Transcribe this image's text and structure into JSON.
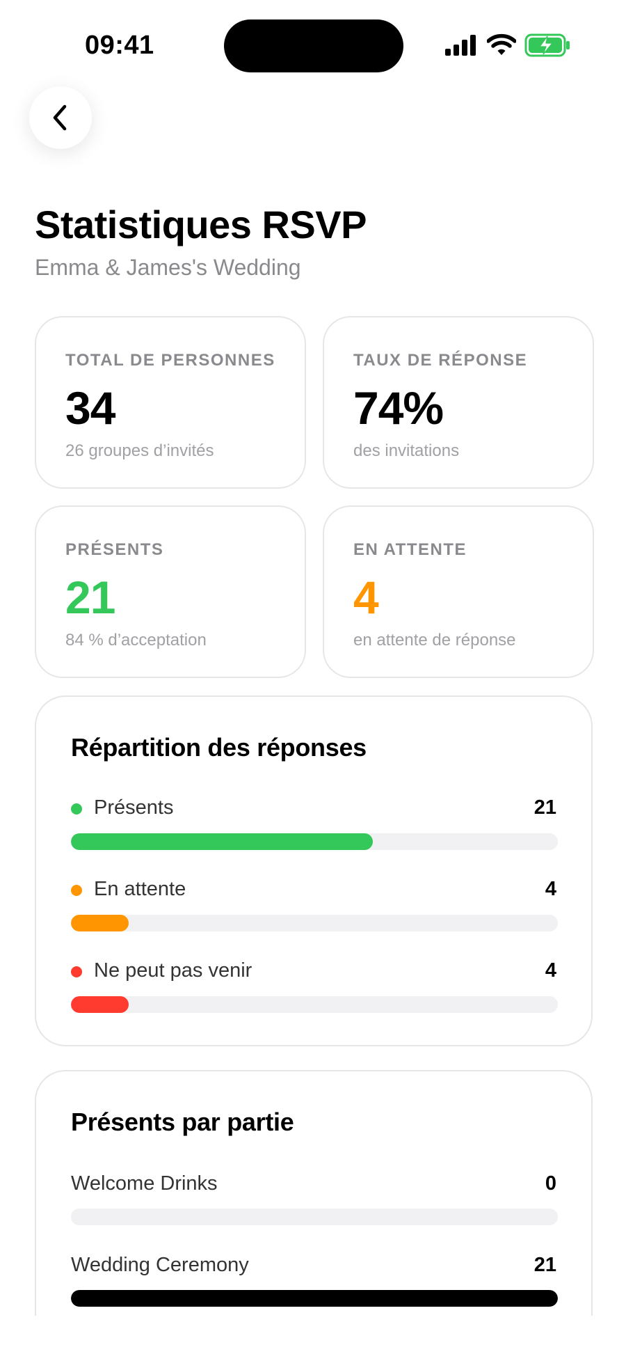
{
  "status_bar": {
    "time": "09:41"
  },
  "header": {
    "back_icon": "chevron-left-icon",
    "title": "Statistiques RSVP",
    "subtitle": "Emma & James's Wedding"
  },
  "stats": [
    {
      "label": "TOTAL DE PERSONNES",
      "value": "34",
      "sub": "26 groupes d’invités"
    },
    {
      "label": "TAUX DE RÉPONSE",
      "value": "74%",
      "sub": "des invitations"
    },
    {
      "label": "PRÉSENTS",
      "value": "21",
      "sub": "84 % d’acceptation"
    },
    {
      "label": "EN ATTENTE",
      "value": "4",
      "sub": "en attente de réponse"
    }
  ],
  "breakdown": {
    "title": "Répartition des réponses",
    "rows": [
      {
        "label": "Présents",
        "value": "21",
        "fraction": 0.62,
        "color": "#34c759"
      },
      {
        "label": "En attente",
        "value": "4",
        "fraction": 0.118,
        "color": "#ff9500"
      },
      {
        "label": "Ne peut pas venir",
        "value": "4",
        "fraction": 0.118,
        "color": "#ff3b30"
      }
    ]
  },
  "by_event": {
    "title": "Présents par partie",
    "rows": [
      {
        "label": "Welcome Drinks",
        "value": "0",
        "fraction": 0.0,
        "color": "#000000"
      },
      {
        "label": "Wedding Ceremony",
        "value": "21",
        "fraction": 1.0,
        "color": "#000000"
      }
    ]
  }
}
